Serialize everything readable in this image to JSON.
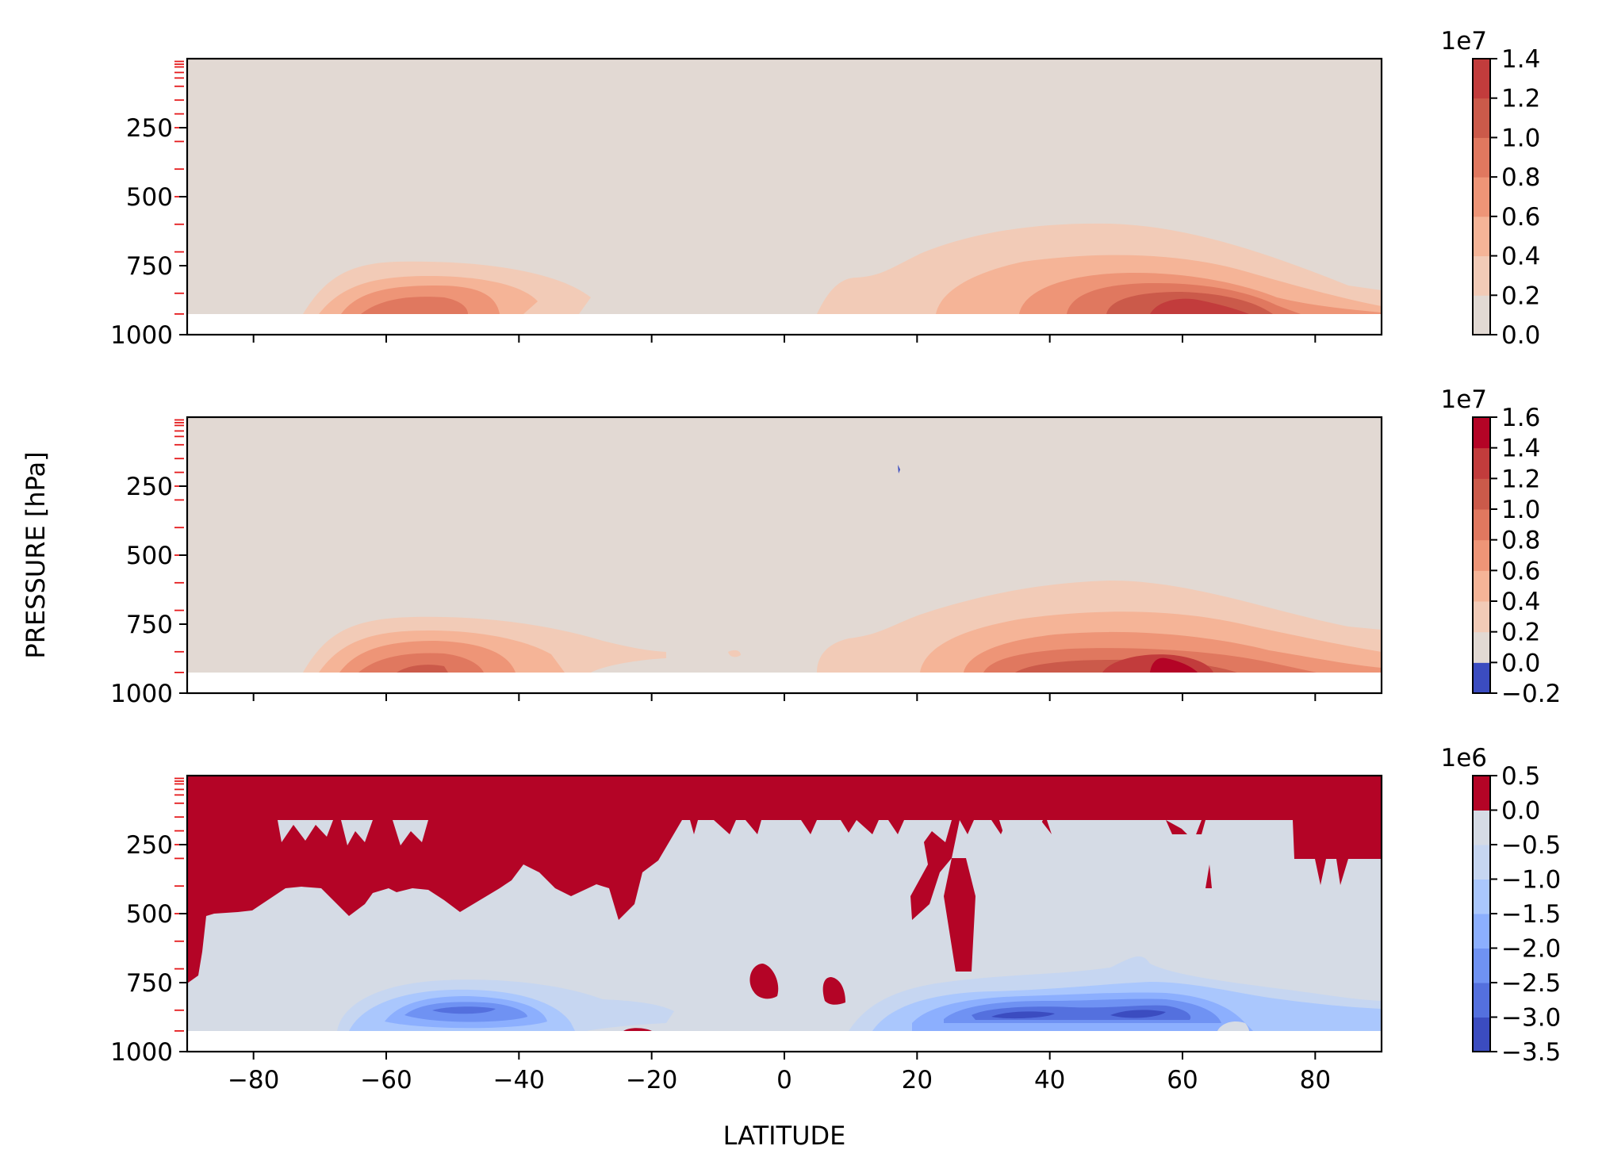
{
  "figure": {
    "ylabel": "PRESSURE [hPa]",
    "xlabel": "LATITUDE"
  },
  "chart_data": [
    {
      "type": "heatmap",
      "title": "",
      "xlabel": "",
      "ylabel": "PRESSURE [hPa]",
      "xlim": [
        -90,
        90
      ],
      "ylim": [
        1000,
        0
      ],
      "yticks": [
        250,
        500,
        750,
        1000
      ],
      "xticks": [
        -80,
        -60,
        -40,
        -20,
        0,
        20,
        40,
        60,
        80
      ],
      "xtick_labels_shown": false,
      "colorbar": {
        "exponent": "1e7",
        "levels": [
          0.0,
          0.2,
          0.4,
          0.6,
          0.8,
          1.0,
          1.2,
          1.4
        ],
        "tick_labels": [
          "0.0",
          "0.2",
          "0.4",
          "0.6",
          "0.8",
          "1.0",
          "1.2",
          "1.4"
        ],
        "colors": [
          "#e2d9d3",
          "#f2cbb7",
          "#f5b497",
          "#ee9577",
          "#e0785f",
          "#cb5a4a",
          "#c23c3c"
        ]
      },
      "maxima": [
        {
          "lat": -52,
          "pressure": 900,
          "value": 0.9
        },
        {
          "lat": 57,
          "pressure": 900,
          "value": 1.35
        }
      ]
    },
    {
      "type": "heatmap",
      "title": "",
      "xlabel": "",
      "ylabel": "PRESSURE [hPa]",
      "xlim": [
        -90,
        90
      ],
      "ylim": [
        1000,
        0
      ],
      "yticks": [
        250,
        500,
        750,
        1000
      ],
      "xticks": [
        -80,
        -60,
        -40,
        -20,
        0,
        20,
        40,
        60,
        80
      ],
      "xtick_labels_shown": false,
      "colorbar": {
        "exponent": "1e7",
        "levels": [
          -0.2,
          0.0,
          0.2,
          0.4,
          0.6,
          0.8,
          1.0,
          1.2,
          1.4,
          1.6
        ],
        "tick_labels": [
          "−0.2",
          "0.0",
          "0.2",
          "0.4",
          "0.6",
          "0.8",
          "1.0",
          "1.2",
          "1.4",
          "1.6"
        ],
        "colors": [
          "#3b4cc0",
          "#e2d9d3",
          "#f2cbb7",
          "#f5b497",
          "#ee9577",
          "#e0785f",
          "#cb5a4a",
          "#c23c3c",
          "#b40426"
        ]
      },
      "maxima": [
        {
          "lat": -52,
          "pressure": 900,
          "value": 1.0
        },
        {
          "lat": 57,
          "pressure": 910,
          "value": 1.5
        }
      ]
    },
    {
      "type": "heatmap",
      "title": "",
      "xlabel": "LATITUDE",
      "ylabel": "PRESSURE [hPa]",
      "xlim": [
        -90,
        90
      ],
      "ylim": [
        1000,
        0
      ],
      "yticks": [
        250,
        500,
        750,
        1000
      ],
      "xticks": [
        -80,
        -60,
        -40,
        -20,
        0,
        20,
        40,
        60,
        80
      ],
      "xtick_labels": [
        "−80",
        "−60",
        "−40",
        "−20",
        "0",
        "20",
        "40",
        "60",
        "80"
      ],
      "xtick_labels_shown": true,
      "colorbar": {
        "exponent": "1e6",
        "levels": [
          -3.5,
          -3.0,
          -2.5,
          -2.0,
          -1.5,
          -1.0,
          -0.5,
          0.0,
          0.5
        ],
        "tick_labels": [
          "−3.5",
          "−3.0",
          "−2.5",
          "−2.0",
          "−1.5",
          "−1.0",
          "−0.5",
          "0.0",
          "0.5"
        ],
        "colors": [
          "#3b4cc0",
          "#5470de",
          "#6f92f3",
          "#8caffe",
          "#aac7fd",
          "#c6d6f1",
          "#d5dbe5",
          "#b40426"
        ]
      },
      "minima": [
        {
          "lat": -50,
          "pressure": 880,
          "value": -2.2
        },
        {
          "lat": 35,
          "pressure": 880,
          "value": -2.8
        },
        {
          "lat": 52,
          "pressure": 880,
          "value": -3.2
        }
      ]
    }
  ]
}
